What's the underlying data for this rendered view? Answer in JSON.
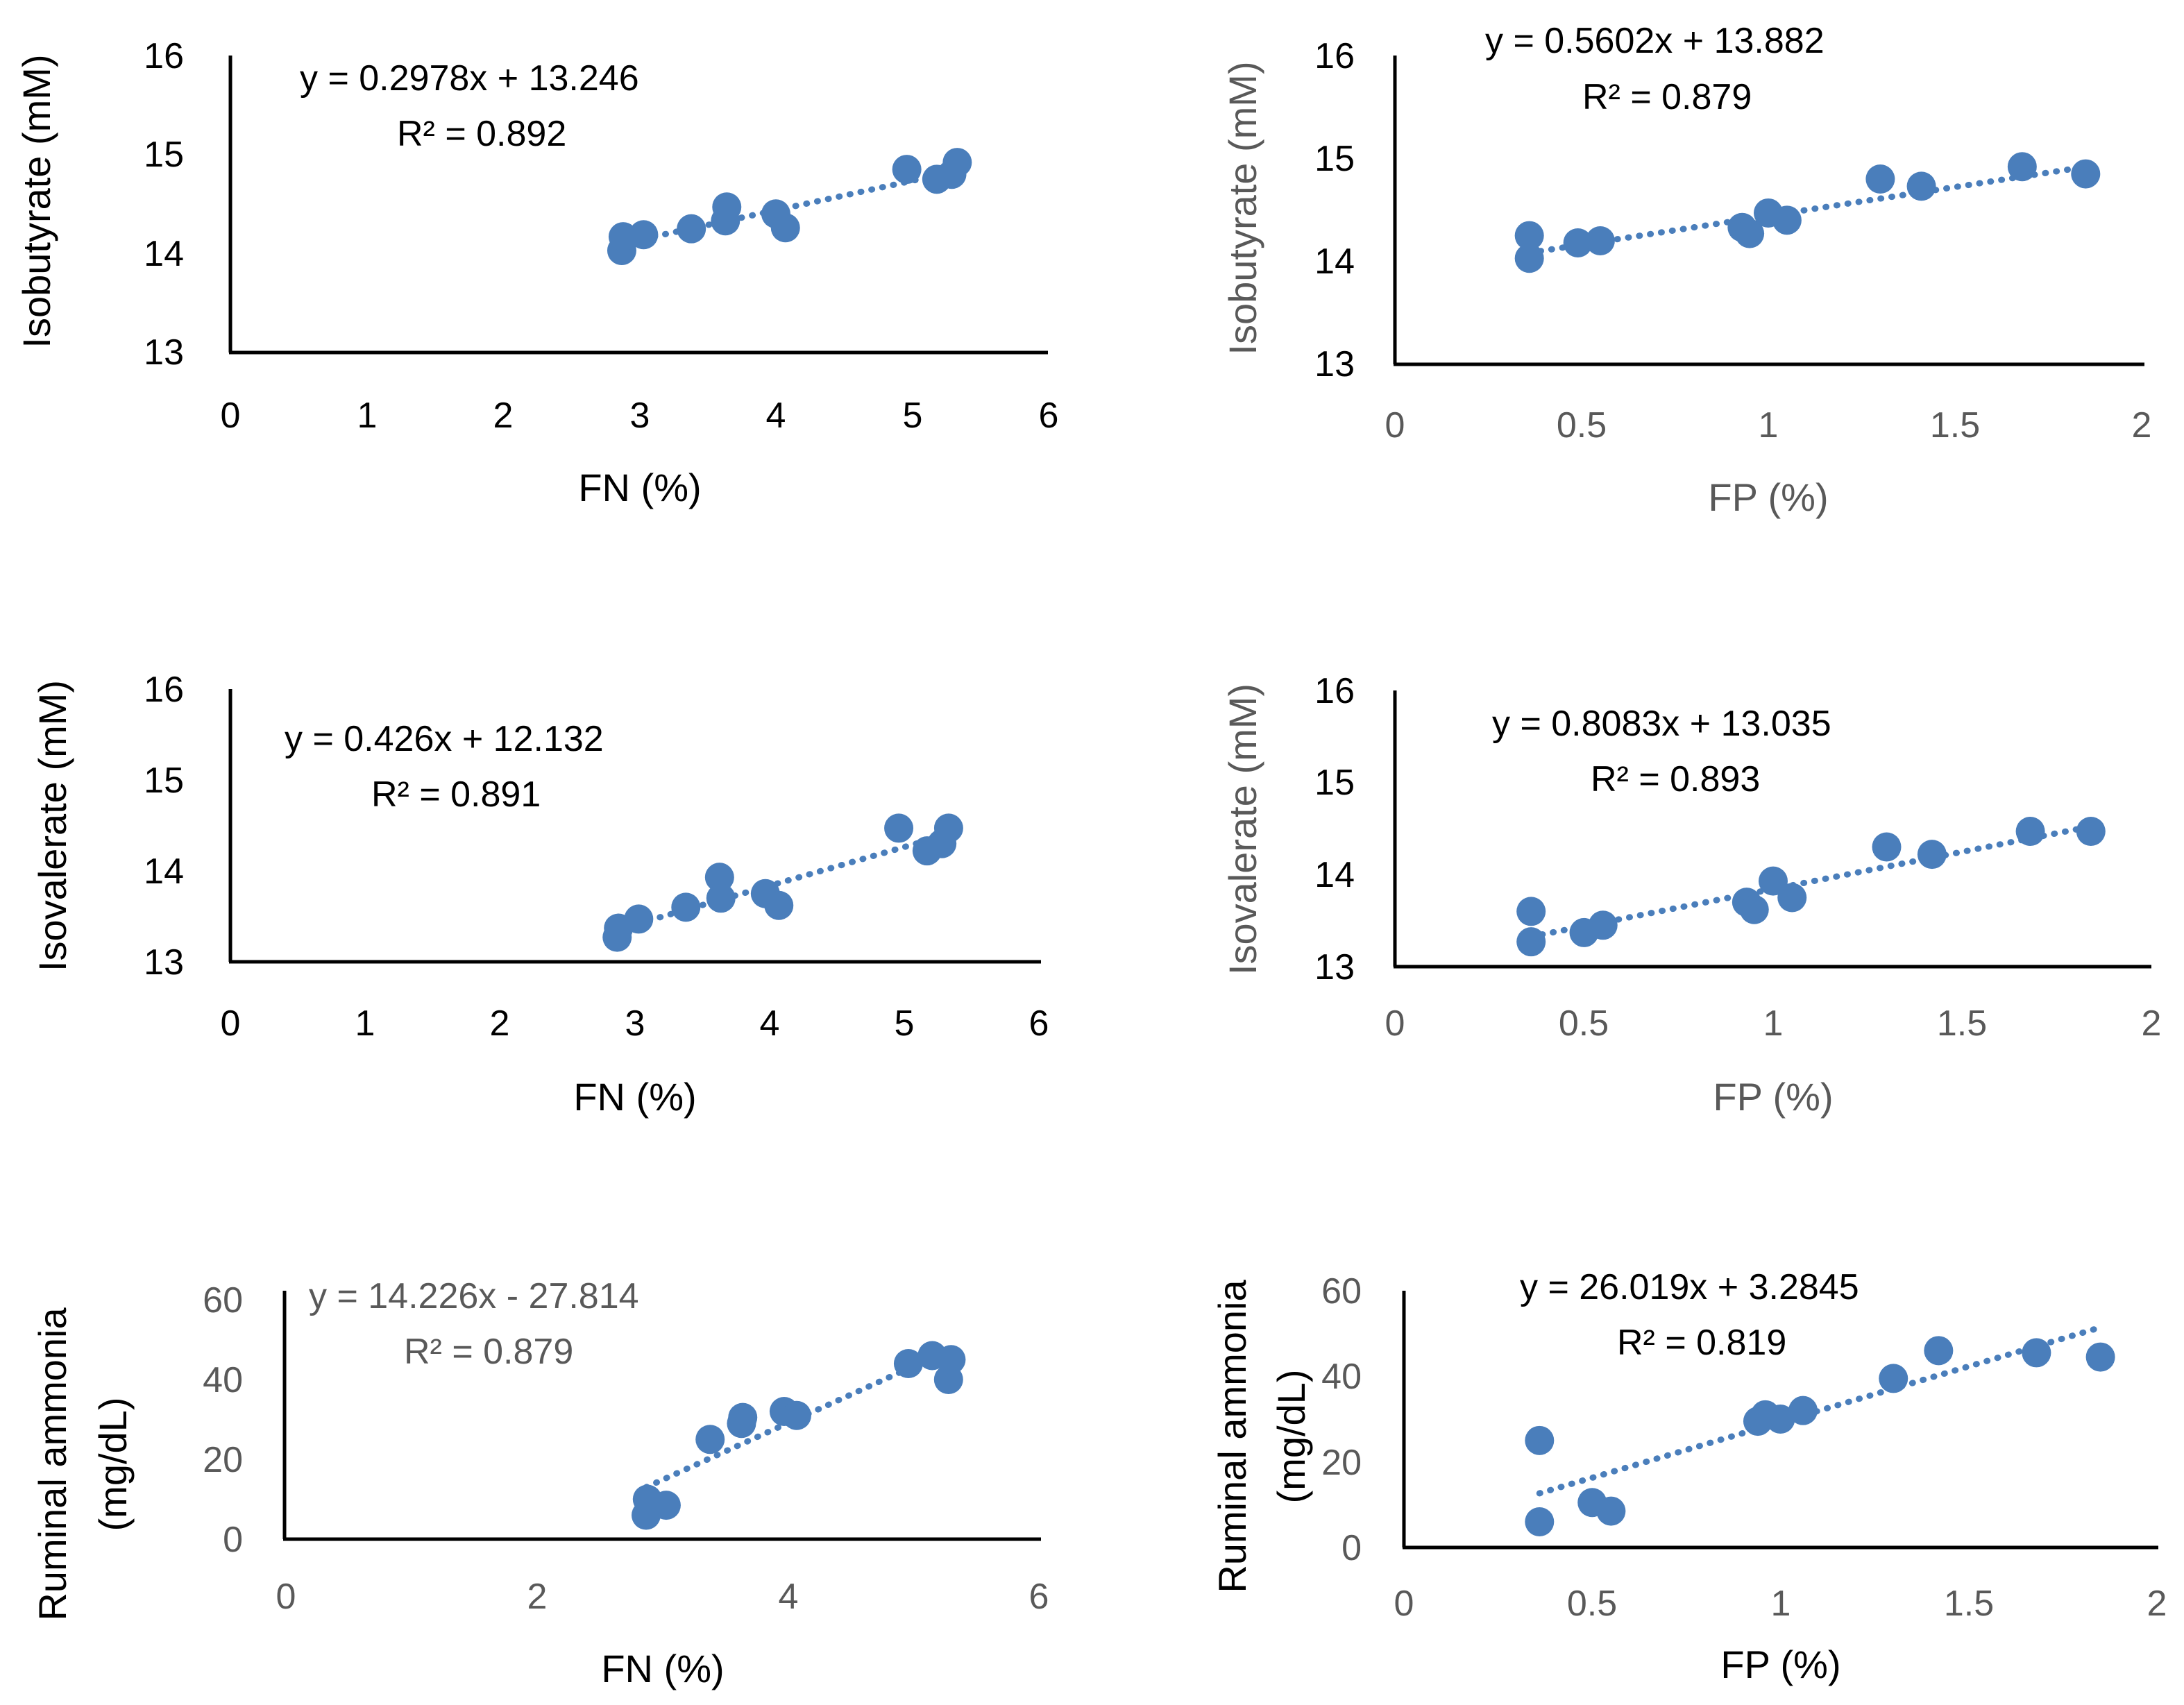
{
  "colors": {
    "marker": "#4A7EBB",
    "axis": "#000000",
    "muted_text": "#595959"
  },
  "chart_data": [
    {
      "type": "scatter",
      "xlabel": "FN (%)",
      "ylabel": "Isobutyrate (mM)",
      "xlim": [
        0,
        6
      ],
      "ylim": [
        13,
        16
      ],
      "xticks": [
        "0",
        "1",
        "2",
        "3",
        "4",
        "5",
        "6"
      ],
      "yticks": [
        "13",
        "14",
        "15",
        "16"
      ],
      "x": [
        2.87,
        2.88,
        3.03,
        3.38,
        3.63,
        3.64,
        4.0,
        4.07,
        4.96,
        5.18,
        5.29,
        5.33
      ],
      "y": [
        14.03,
        14.17,
        14.19,
        14.25,
        14.33,
        14.47,
        14.4,
        14.26,
        14.85,
        14.75,
        14.8,
        14.92
      ],
      "trendline": {
        "slope": 0.2978,
        "intercept": 13.246,
        "x_range": [
          2.87,
          5.33
        ]
      },
      "equation": "y = 0.2978x + 13.246",
      "r2": "R² = 0.892"
    },
    {
      "type": "scatter",
      "xlabel": "FP (%)",
      "ylabel": "Isobutyrate (mM)",
      "xlim": [
        0,
        2
      ],
      "ylim": [
        13,
        16
      ],
      "xticks": [
        "0",
        "0.5",
        "1",
        "1.5",
        "2"
      ],
      "yticks": [
        "13",
        "14",
        "15",
        "16"
      ],
      "x": [
        0.36,
        0.36,
        0.49,
        0.55,
        0.93,
        0.95,
        1.0,
        1.05,
        1.3,
        1.41,
        1.68,
        1.85
      ],
      "y": [
        14.03,
        14.25,
        14.18,
        14.2,
        14.33,
        14.27,
        14.47,
        14.4,
        14.8,
        14.73,
        14.92,
        14.85
      ],
      "trendline": {
        "slope": 0.5602,
        "intercept": 13.882,
        "x_range": [
          0.36,
          1.85
        ]
      },
      "equation": "y = 0.5602x + 13.882",
      "r2": "R² = 0.879"
    },
    {
      "type": "scatter",
      "xlabel": "FN (%)",
      "ylabel": "Isovalerate (mM)",
      "xlim": [
        0,
        6
      ],
      "ylim": [
        13,
        16
      ],
      "xticks": [
        "0",
        "1",
        "2",
        "3",
        "4",
        "5",
        "6"
      ],
      "yticks": [
        "13",
        "14",
        "15",
        "16"
      ],
      "x": [
        2.87,
        2.88,
        3.03,
        3.38,
        3.63,
        3.64,
        3.97,
        4.07,
        4.96,
        5.17,
        5.28,
        5.33
      ],
      "y": [
        13.27,
        13.37,
        13.47,
        13.6,
        13.93,
        13.7,
        13.75,
        13.62,
        14.47,
        14.22,
        14.3,
        14.47
      ],
      "trendline": {
        "slope": 0.426,
        "intercept": 12.132,
        "x_range": [
          2.87,
          5.33
        ]
      },
      "equation": "y = 0.426x + 12.132",
      "r2": "R² = 0.891"
    },
    {
      "type": "scatter",
      "xlabel": "FP (%)",
      "ylabel": "Isovalerate (mM)",
      "xlim": [
        0,
        2
      ],
      "ylim": [
        13,
        16
      ],
      "xticks": [
        "0",
        "0.5",
        "1",
        "1.5",
        "2"
      ],
      "yticks": [
        "13",
        "14",
        "15",
        "16"
      ],
      "x": [
        0.36,
        0.36,
        0.5,
        0.55,
        0.93,
        0.95,
        1.0,
        1.05,
        1.3,
        1.42,
        1.68,
        1.84
      ],
      "y": [
        13.27,
        13.6,
        13.37,
        13.45,
        13.7,
        13.62,
        13.93,
        13.75,
        14.3,
        14.22,
        14.47,
        14.47
      ],
      "trendline": {
        "slope": 0.8083,
        "intercept": 13.035,
        "x_range": [
          0.36,
          1.84
        ]
      },
      "equation": "y = 0.8083x + 13.035",
      "r2": "R² = 0.893"
    },
    {
      "type": "scatter",
      "xlabel": "FN (%)",
      "ylabel": "Ruminal ammonia (mg/dL)",
      "ylabel_lines": [
        "Ruminal ammonia",
        "(mg/dL)"
      ],
      "xlim": [
        0,
        6
      ],
      "ylim": [
        0,
        60
      ],
      "xticks": [
        "0",
        "2",
        "4",
        "6"
      ],
      "yticks": [
        "0",
        "20",
        "40",
        "60"
      ],
      "x": [
        2.87,
        2.88,
        3.03,
        3.38,
        3.63,
        3.64,
        3.97,
        4.07,
        4.96,
        5.15,
        5.28,
        5.3
      ],
      "y": [
        6,
        10,
        8.5,
        25,
        29,
        30.5,
        32,
        31,
        44,
        46,
        40,
        45
      ],
      "trendline": {
        "slope": 14.226,
        "intercept": -27.814,
        "x_range": [
          2.87,
          5.33
        ]
      },
      "equation": "y = 14.226x - 27.814",
      "r2": "R² = 0.879"
    },
    {
      "type": "scatter",
      "xlabel": "FP (%)",
      "ylabel": "Ruminal ammonia (mg/dL)",
      "ylabel_lines": [
        "Ruminal ammonia",
        "(mg/dL)"
      ],
      "xlim": [
        0,
        2
      ],
      "ylim": [
        0,
        60
      ],
      "xticks": [
        "0",
        "0.5",
        "1",
        "1.5",
        "2"
      ],
      "yticks": [
        "0",
        "20",
        "40",
        "60"
      ],
      "x": [
        0.36,
        0.36,
        0.5,
        0.55,
        0.94,
        0.96,
        1.0,
        1.06,
        1.3,
        1.42,
        1.68,
        1.85
      ],
      "y": [
        6,
        25,
        10.5,
        8.5,
        29.5,
        31,
        30,
        32,
        39.5,
        46,
        45.5,
        44.5
      ],
      "trendline": {
        "slope": 26.019,
        "intercept": 3.2845,
        "x_range": [
          0.36,
          1.85
        ]
      },
      "equation": "y = 26.019x + 3.2845",
      "r2": "R² = 0.819"
    }
  ]
}
